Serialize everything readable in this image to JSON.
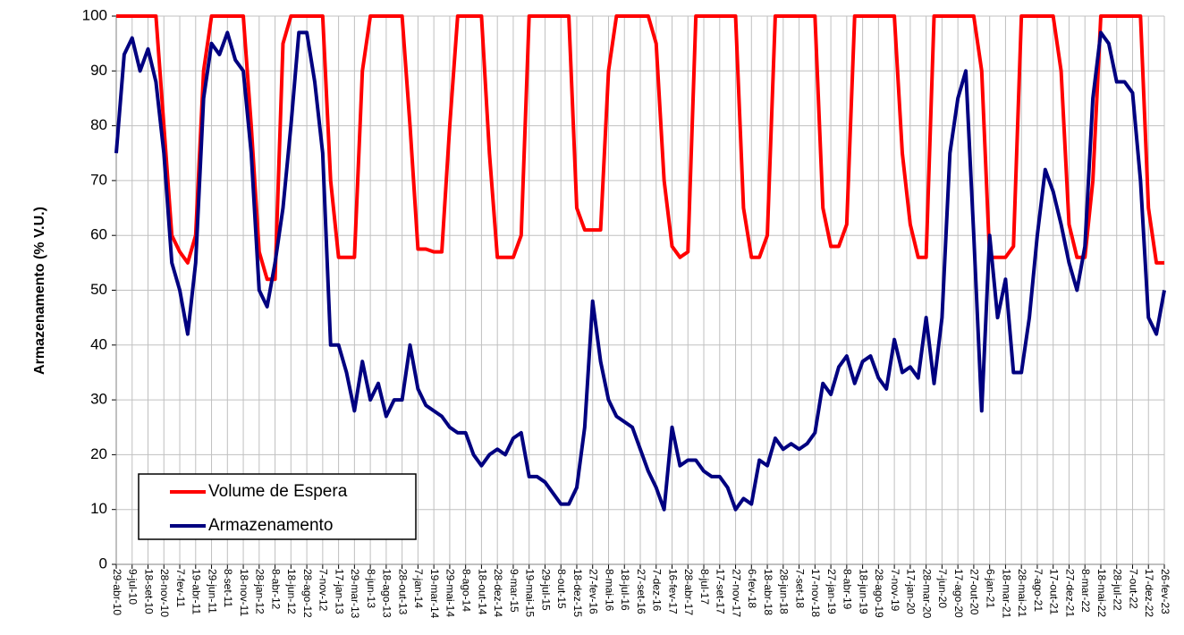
{
  "chart_data": {
    "type": "line",
    "y_label": "Armazenamento (% V.U.)",
    "categories": [
      "29-abr-10",
      null,
      "9-jul-10",
      null,
      "18-set-10",
      null,
      "28-nov-10",
      null,
      "7-fev-11",
      null,
      "19-abr-11",
      null,
      "29-jun-11",
      null,
      "8-set-11",
      null,
      "18-nov-11",
      null,
      "28-jan-12",
      null,
      "8-abr-12",
      null,
      "18-jun-12",
      null,
      "28-ago-12",
      null,
      "7-nov-12",
      null,
      "17-jan-13",
      null,
      "29-mar-13",
      null,
      "8-jun-13",
      null,
      "18-ago-13",
      null,
      "28-out-13",
      null,
      "7-jan-14",
      null,
      "19-mar-14",
      null,
      "29-mai-14",
      null,
      "8-ago-14",
      null,
      "18-out-14",
      null,
      "28-dez-14",
      null,
      "9-mar-15",
      null,
      "19-mai-15",
      null,
      "29-jul-15",
      null,
      "8-out-15",
      null,
      "18-dez-15",
      null,
      "27-fev-16",
      null,
      "8-mai-16",
      null,
      "18-jul-16",
      null,
      "27-set-16",
      null,
      "7-dez-16",
      null,
      "16-fev-17",
      null,
      "28-abr-17",
      null,
      "8-jul-17",
      null,
      "17-set-17",
      null,
      "27-nov-17",
      null,
      "6-fev-18",
      null,
      "18-abr-18",
      null,
      "28-jun-18",
      null,
      "7-set-18",
      null,
      "17-nov-18",
      null,
      "27-jan-19",
      null,
      "8-abr-19",
      null,
      "18-jun-19",
      null,
      "28-ago-19",
      null,
      "7-nov-19",
      null,
      "17-jan-20",
      null,
      "28-mar-20",
      null,
      "7-jun-20",
      null,
      "17-ago-20",
      null,
      "27-out-20",
      null,
      "6-jan-21",
      null,
      "18-mar-21",
      null,
      "28-mai-21",
      null,
      "7-ago-21",
      null,
      "17-out-21",
      null,
      "27-dez-21",
      null,
      "8-mar-22",
      null,
      "18-mai-22",
      null,
      "28-jul-22",
      null,
      "7-out-22",
      null,
      "17-dez-22",
      null,
      "26-fev-23"
    ],
    "series": [
      {
        "name": "Volume de Espera",
        "color": "#ff0000",
        "values": [
          100,
          100,
          100,
          100,
          100,
          100,
          80,
          60,
          57,
          55,
          60,
          90,
          100,
          100,
          100,
          100,
          100,
          80,
          57,
          52,
          52,
          95,
          100,
          100,
          100,
          100,
          100,
          70,
          56,
          56,
          56,
          90,
          100,
          100,
          100,
          100,
          100,
          80,
          57.5,
          57.5,
          57,
          57,
          80,
          100,
          100,
          100,
          100,
          75,
          56,
          56,
          56,
          60,
          100,
          100,
          100,
          100,
          100,
          100,
          65,
          61,
          61,
          61,
          90,
          100,
          100,
          100,
          100,
          100,
          95,
          70,
          58,
          56,
          57,
          100,
          100,
          100,
          100,
          100,
          100,
          65,
          56,
          56,
          60,
          100,
          100,
          100,
          100,
          100,
          100,
          65,
          58,
          58,
          62,
          100,
          100,
          100,
          100,
          100,
          100,
          75,
          62,
          56,
          56,
          100,
          100,
          100,
          100,
          100,
          100,
          90,
          56,
          56,
          56,
          58,
          100,
          100,
          100,
          100,
          100,
          90,
          62,
          56,
          56,
          70,
          100,
          100,
          100,
          100,
          100,
          100,
          65,
          55,
          55
        ]
      },
      {
        "name": "Armazenamento",
        "color": "#000080",
        "values": [
          75,
          93,
          96,
          90,
          94,
          88,
          75,
          55,
          50,
          42,
          55,
          85,
          95,
          93,
          97,
          92,
          90,
          75,
          50,
          47,
          55,
          65,
          80,
          97,
          97,
          88,
          75,
          40,
          40,
          35,
          28,
          37,
          30,
          33,
          27,
          30,
          30,
          40,
          32,
          29,
          28,
          27,
          25,
          24,
          24,
          20,
          18,
          20,
          21,
          20,
          23,
          24,
          16,
          16,
          15,
          13,
          11,
          11,
          14,
          25,
          48,
          37,
          30,
          27,
          26,
          25,
          21,
          17,
          14,
          10,
          25,
          18,
          19,
          19,
          17,
          16,
          16,
          14,
          10,
          12,
          11,
          19,
          18,
          23,
          21,
          22,
          21,
          22,
          24,
          33,
          31,
          36,
          38,
          33,
          37,
          38,
          34,
          32,
          41,
          35,
          36,
          34,
          45,
          33,
          45,
          75,
          85,
          90,
          60,
          28,
          60,
          45,
          52,
          35,
          35,
          45,
          60,
          72,
          68,
          62,
          55,
          50,
          58,
          85,
          97,
          95,
          88,
          88,
          86,
          70,
          45,
          42,
          50
        ]
      }
    ],
    "ylim": [
      0,
      100
    ],
    "yticks": [
      0,
      10,
      20,
      30,
      40,
      50,
      60,
      70,
      80,
      90,
      100
    ],
    "grid": true,
    "legend": "lower left"
  }
}
